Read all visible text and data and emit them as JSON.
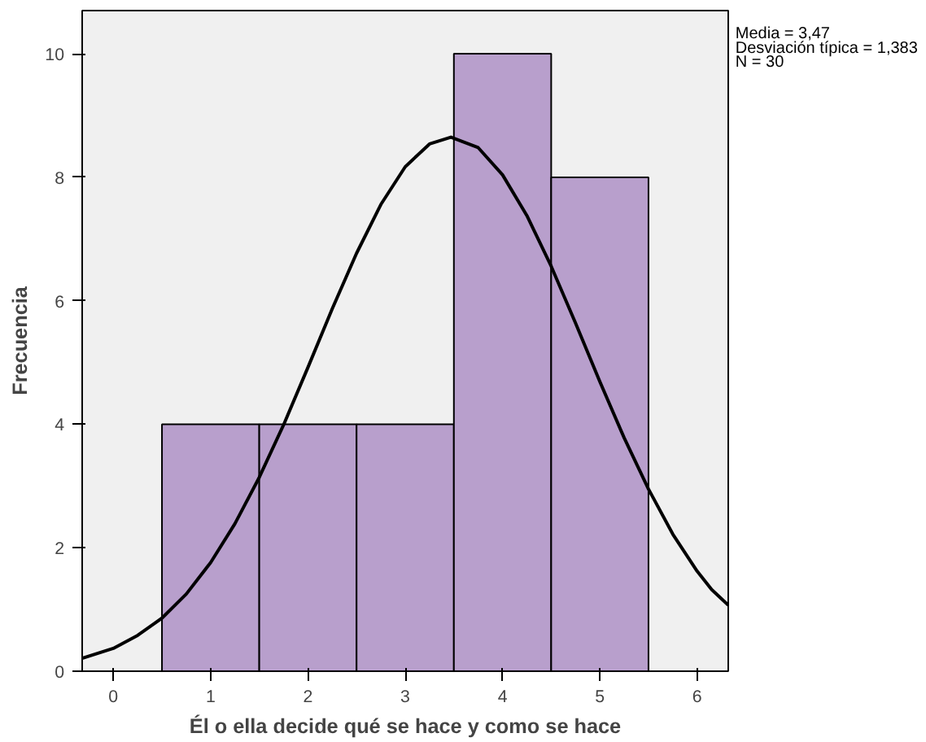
{
  "chart_data": {
    "type": "histogram",
    "xlabel": "Él o ella decide qué se hace y como se hace",
    "ylabel": "Frecuencia",
    "xlim": [
      -0.32,
      6.32
    ],
    "ylim": [
      0,
      10.7
    ],
    "xticks": [
      0,
      1,
      2,
      3,
      4,
      5,
      6
    ],
    "yticks": [
      0,
      2,
      4,
      6,
      8,
      10
    ],
    "grid": false,
    "annotations": [
      "Media = 3,47",
      "Desviación típica = 1,383",
      "N = 30"
    ],
    "series": [
      {
        "color": "#b89fcc",
        "bins": [
          0.5,
          1.5,
          2.5,
          3.5,
          4.5,
          5.5
        ],
        "values": [
          4,
          4,
          4,
          10,
          8
        ]
      },
      {
        "type": "line",
        "color": "#000000",
        "x": [
          -0.32,
          0,
          0.25,
          0.5,
          0.75,
          1,
          1.25,
          1.5,
          1.75,
          2,
          2.25,
          2.5,
          2.75,
          3,
          3.25,
          3.47,
          3.75,
          4,
          4.25,
          4.5,
          4.75,
          5,
          5.25,
          5.5,
          5.75,
          6,
          6.15,
          6.32
        ],
        "values": [
          0.21,
          0.37,
          0.58,
          0.86,
          1.25,
          1.76,
          2.39,
          3.14,
          3.99,
          4.92,
          5.87,
          6.77,
          7.56,
          8.17,
          8.54,
          8.65,
          8.48,
          8.04,
          7.38,
          6.56,
          5.64,
          4.69,
          3.78,
          2.95,
          2.22,
          1.62,
          1.32,
          1.07
        ]
      }
    ]
  }
}
